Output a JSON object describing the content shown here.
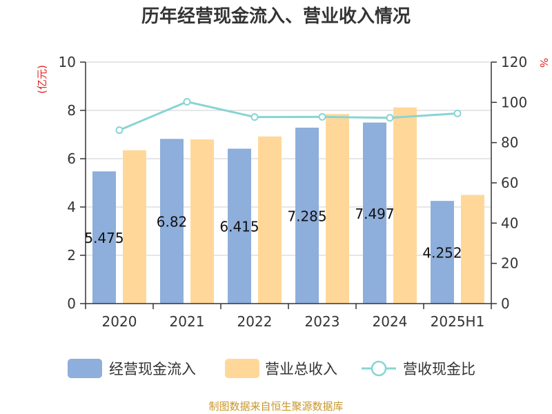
{
  "chart_data": {
    "type": "bar",
    "title": "历年经营现金流入、营业收入情况",
    "categories": [
      "2020",
      "2021",
      "2022",
      "2023",
      "2024",
      "2025H1"
    ],
    "series": [
      {
        "name": "经营现金流入",
        "type": "bar",
        "axis": "left",
        "color": "#8eaedb",
        "values": [
          5.475,
          6.82,
          6.415,
          7.285,
          7.497,
          4.252
        ],
        "labels": [
          "5.475",
          "6.82",
          "6.415",
          "7.285",
          "7.497",
          "4.252"
        ]
      },
      {
        "name": "营业总收入",
        "type": "bar",
        "axis": "left",
        "color": "#ffd899",
        "values": [
          6.35,
          6.8,
          6.92,
          7.85,
          8.12,
          4.5
        ]
      },
      {
        "name": "营收现金比",
        "type": "line",
        "axis": "right",
        "color": "#88d4d4",
        "values": [
          86.2,
          100.3,
          92.7,
          92.8,
          92.3,
          94.5
        ]
      }
    ],
    "y_left": {
      "label": "(亿元)",
      "min": 0,
      "max": 10,
      "ticks": [
        "0",
        "2",
        "4",
        "6",
        "8",
        "10"
      ]
    },
    "y_right": {
      "label": "%",
      "min": 0,
      "max": 120,
      "ticks": [
        "0",
        "20",
        "40",
        "60",
        "80",
        "100",
        "120"
      ]
    },
    "grid": true,
    "legend_position": "bottom"
  },
  "source": "制图数据来自恒生聚源数据库"
}
